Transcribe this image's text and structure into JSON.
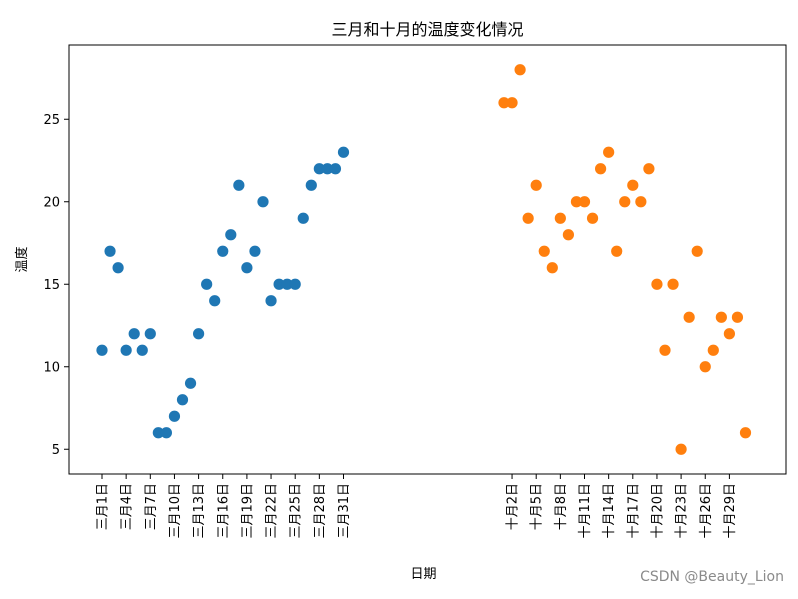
{
  "chart_data": {
    "type": "scatter",
    "title": "三月和十月的温度变化情况",
    "xlabel": "日期",
    "ylabel": "温度",
    "ylim": [
      3.5,
      29.5
    ],
    "y_ticks": [
      5,
      10,
      15,
      20,
      25
    ],
    "grid": false,
    "series": [
      {
        "color": "#1f77b4",
        "x": [
          "三月1日",
          "三月2日",
          "三月3日",
          "三月4日",
          "三月5日",
          "三月6日",
          "三月7日",
          "三月8日",
          "三月9日",
          "三月10日",
          "三月11日",
          "三月12日",
          "三月13日",
          "三月14日",
          "三月15日",
          "三月16日",
          "三月17日",
          "三月18日",
          "三月19日",
          "三月20日",
          "三月21日",
          "三月22日",
          "三月23日",
          "三月24日",
          "三月25日",
          "三月26日",
          "三月27日",
          "三月28日",
          "三月29日",
          "三月30日",
          "三月31日"
        ],
        "values": [
          11,
          17,
          16,
          11,
          12,
          11,
          12,
          6,
          6,
          7,
          8,
          9,
          12,
          15,
          14,
          17,
          18,
          21,
          16,
          17,
          20,
          14,
          15,
          15,
          15,
          19,
          21,
          22,
          22,
          22,
          23
        ]
      },
      {
        "color": "#ff7f0e",
        "x": [
          "十月1日",
          "十月2日",
          "十月3日",
          "十月4日",
          "十月5日",
          "十月6日",
          "十月7日",
          "十月8日",
          "十月9日",
          "十月10日",
          "十月11日",
          "十月12日",
          "十月13日",
          "十月14日",
          "十月15日",
          "十月16日",
          "十月17日",
          "十月18日",
          "十月19日",
          "十月20日",
          "十月21日",
          "十月22日",
          "十月23日",
          "十月24日",
          "十月25日",
          "十月26日",
          "十月27日",
          "十月28日",
          "十月29日",
          "十月30日",
          "十月31日"
        ],
        "values": [
          26,
          26,
          28,
          19,
          21,
          17,
          16,
          19,
          18,
          20,
          20,
          19,
          22,
          23,
          17,
          20,
          21,
          20,
          22,
          15,
          11,
          15,
          5,
          13,
          17,
          10,
          11,
          13,
          12,
          13,
          6
        ]
      }
    ],
    "tick_labels": {
      "march": [
        "三月1日",
        "三月4日",
        "三月7日",
        "三月10日",
        "三月13日",
        "三月16日",
        "三月19日",
        "三月22日",
        "三月25日",
        "三月28日",
        "三月31日"
      ],
      "october": [
        "十月2日",
        "十月5日",
        "十月8日",
        "十月11日",
        "十月14日",
        "十月17日",
        "十月20日",
        "十月23日",
        "十月26日",
        "十月29日"
      ]
    }
  },
  "watermark": "CSDN @Beauty_Lion"
}
